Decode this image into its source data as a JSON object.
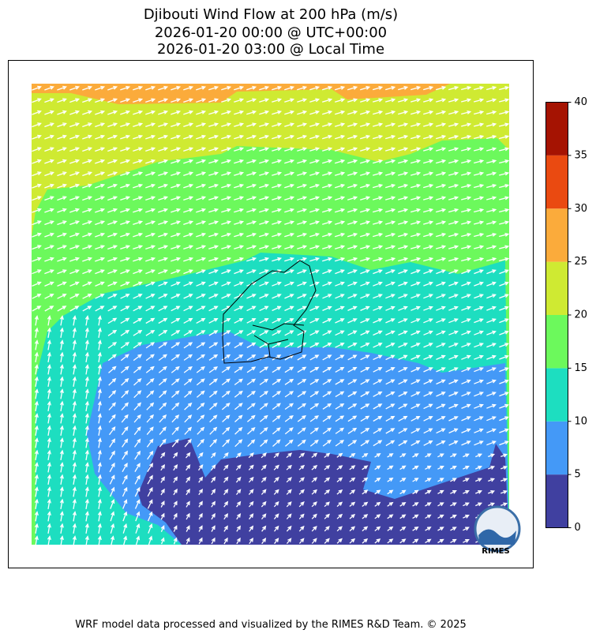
{
  "title": [
    "Djibouti Wind Flow at 200 hPa (m/s)",
    "2026-01-20 00:00 @ UTC+00:00",
    "2026-01-20 03:00 @ Local Time"
  ],
  "colorbar": {
    "lim": [
      0,
      40
    ],
    "ticks": [
      0,
      5,
      10,
      15,
      20,
      25,
      30,
      35,
      40
    ],
    "colors": [
      "#4040a0",
      "#4499f7",
      "#1ddec0",
      "#6cf95c",
      "#cfea32",
      "#fbab3b",
      "#ea4a11",
      "#a51302"
    ]
  },
  "logo": "RIMES",
  "footer": "WRF model data processed and visualized by the RIMES R&D Team. © 2025"
}
